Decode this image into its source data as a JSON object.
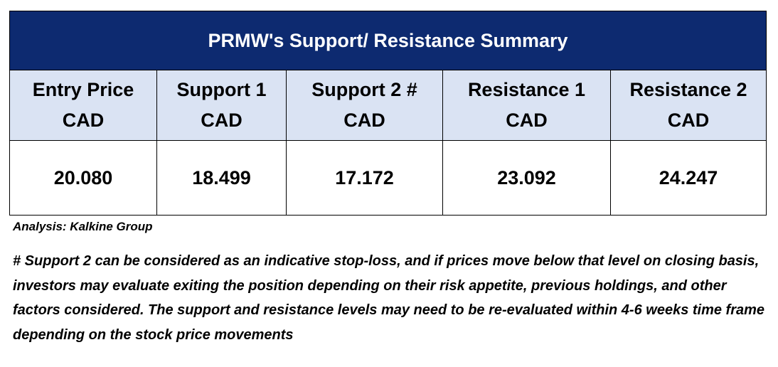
{
  "table": {
    "title": "PRMW's Support/  Resistance Summary",
    "headers": [
      {
        "line1": "Entry Price",
        "line2": "CAD"
      },
      {
        "line1": "Support 1",
        "line2": "CAD"
      },
      {
        "line1": "Support 2 #",
        "line2": "CAD"
      },
      {
        "line1": "Resistance 1",
        "line2": "CAD"
      },
      {
        "line1": "Resistance 2",
        "line2": "CAD"
      }
    ],
    "values": [
      "20.080",
      "18.499",
      "17.172",
      "23.092",
      "24.247"
    ]
  },
  "analysis": "Analysis: Kalkine Group",
  "note": "# Support 2 can be considered as an indicative stop-loss, and if prices move below that level on closing basis, investors may evaluate exiting the position depending on their risk appetite, previous holdings, and other factors considered. The support and resistance levels may need to be re-evaluated within 4-6 weeks time frame depending on the stock price movements",
  "colors": {
    "title_bg": "#0d2a70",
    "header_bg": "#dae3f3"
  }
}
